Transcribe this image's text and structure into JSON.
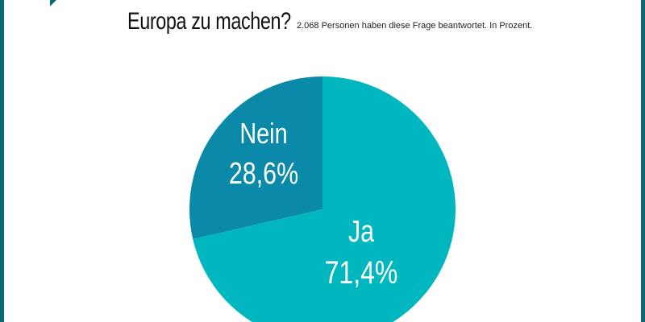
{
  "title": "Europa zu machen?",
  "subtitle": "2.068 Personen haben diese Frage beantwortet. In Prozent.",
  "chart_data": {
    "type": "pie",
    "categories": [
      "Ja",
      "Nein"
    ],
    "values": [
      71.4,
      28.6
    ],
    "value_labels": [
      "71,4%",
      "28,6%"
    ],
    "colors": [
      "#00b7bf",
      "#0a8aa8"
    ]
  }
}
